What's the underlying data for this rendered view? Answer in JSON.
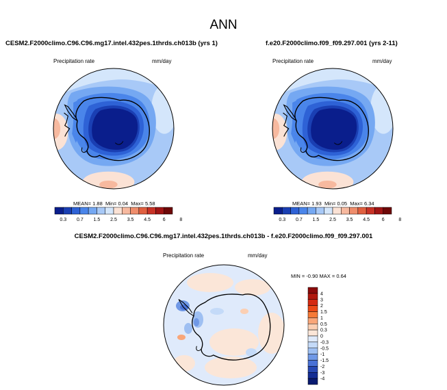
{
  "title": "ANN",
  "panels": [
    {
      "case": "CESM2.F2000climo.C96.C96.mg17.intel.432pes.1thrds.ch013b (yrs 1)",
      "variable": "Precipitation rate",
      "units": "mm/day",
      "mean_label": "MEAN=",
      "mean": "1.88",
      "min_label": "Min=",
      "min": "0.04",
      "max_label": "Max=",
      "max": "5.58"
    },
    {
      "case": "f.e20.F2000climo.f09_f09.297.001 (yrs 2-11)",
      "variable": "Precipitation rate",
      "units": "mm/day",
      "mean_label": "MEAN=",
      "mean": "1.93",
      "min_label": "Min=",
      "min": "0.05",
      "max_label": "Max=",
      "max": "6.34"
    }
  ],
  "diff": {
    "case": "CESM2.F2000climo.C96.C96.mg17.intel.432pes.1thrds.ch013b - f.e20.F2000climo.f09_f09.297.001",
    "variable": "Precipitation rate",
    "units": "mm/day",
    "min_label": "MIN =",
    "min": "-0.90",
    "max_label": "MAX =",
    "max": "0.64"
  },
  "chart_data": [
    {
      "type": "heatmap",
      "title": "CESM2.F2000climo.C96.C96.mg17.intel.432pes.1thrds.ch013b (yrs 1)",
      "projection": "south polar stereographic",
      "variable": "Precipitation rate",
      "units": "mm/day",
      "mean": 1.88,
      "min": 0.04,
      "max": 5.58,
      "colorbar_levels": [
        "0.3",
        "0.7",
        "1",
        "1.5",
        "2",
        "2.5",
        "3",
        "3.5",
        "4",
        "4.5",
        "5",
        "6",
        "8"
      ],
      "colorbar_labels": [
        "0.3",
        "0.7",
        "1.5",
        "2.5",
        "3.5",
        "4.5",
        "6",
        "8"
      ],
      "colors": [
        "#0a1e8c",
        "#1a3fb3",
        "#2e62d6",
        "#4a85ea",
        "#75a8f2",
        "#a8c9f7",
        "#d4e6fb",
        "#fbe2d5",
        "#f7b99f",
        "#ef8d6c",
        "#e06040",
        "#c83226",
        "#a01414",
        "#6e0808"
      ]
    },
    {
      "type": "heatmap",
      "title": "f.e20.F2000climo.f09_f09.297.001 (yrs 2-11)",
      "projection": "south polar stereographic",
      "variable": "Precipitation rate",
      "units": "mm/day",
      "mean": 1.93,
      "min": 0.05,
      "max": 6.34,
      "colorbar_levels": [
        "0.3",
        "0.7",
        "1",
        "1.5",
        "2",
        "2.5",
        "3",
        "3.5",
        "4",
        "4.5",
        "5",
        "6",
        "8"
      ],
      "colorbar_labels": [
        "0.3",
        "0.7",
        "1.5",
        "2.5",
        "3.5",
        "4.5",
        "6",
        "8"
      ],
      "colors": [
        "#0a1e8c",
        "#1a3fb3",
        "#2e62d6",
        "#4a85ea",
        "#75a8f2",
        "#a8c9f7",
        "#d4e6fb",
        "#fbe2d5",
        "#f7b99f",
        "#ef8d6c",
        "#e06040",
        "#c83226",
        "#a01414",
        "#6e0808"
      ]
    },
    {
      "type": "heatmap",
      "title": "CESM2.F2000climo.C96.C96.mg17.intel.432pes.1thrds.ch013b - f.e20.F2000climo.f09_f09.297.001",
      "projection": "south polar stereographic",
      "variable": "Precipitation rate",
      "units": "mm/day",
      "min": -0.9,
      "max": 0.64,
      "colorbar_labels": [
        "4",
        "3",
        "2",
        "1.5",
        "1",
        "0.5",
        "0.3",
        "0",
        "-0.3",
        "-0.5",
        "-1",
        "-1.5",
        "-2",
        "-3",
        "-4"
      ],
      "colors": [
        "#8b0a0a",
        "#b0180e",
        "#d42a12",
        "#ec4a18",
        "#f67a38",
        "#f9a679",
        "#fbcfb3",
        "#fbe6d8",
        "#dfeafb",
        "#c4daf8",
        "#9ebff2",
        "#6f98e6",
        "#4a72d6",
        "#2849b3",
        "#142d94",
        "#091a70"
      ]
    }
  ]
}
